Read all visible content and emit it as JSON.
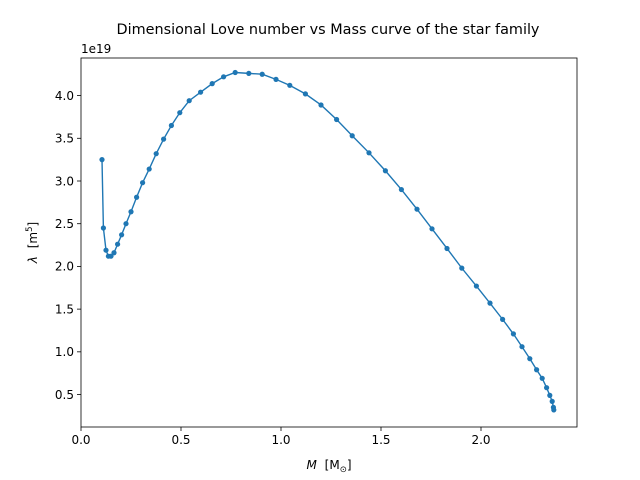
{
  "chart_data": {
    "type": "line",
    "title": "Dimensional Love number vs Mass curve of the star family",
    "xlabel": "M",
    "xlabel_unit": "[M",
    "xlabel_unit_sub": "⊙",
    "xlabel_unit_close": "]",
    "ylabel": "λ",
    "ylabel_unit": "[m",
    "ylabel_unit_sup": "5",
    "ylabel_unit_close": "]",
    "y_offset_label": "1e19",
    "xlim": [
      0.0,
      2.48
    ],
    "ylim": [
      0.12,
      4.44
    ],
    "x_ticks": [
      0.0,
      0.5,
      1.0,
      1.5,
      2.0
    ],
    "x_tick_labels": [
      "0.0",
      "0.5",
      "1.0",
      "1.5",
      "2.0"
    ],
    "y_ticks": [
      0.5,
      1.0,
      1.5,
      2.0,
      2.5,
      3.0,
      3.5,
      4.0
    ],
    "y_tick_labels": [
      "0.5",
      "1.0",
      "1.5",
      "2.0",
      "2.5",
      "3.0",
      "3.5",
      "4.0"
    ],
    "grid": false,
    "line_color": "#1f77b4",
    "marker": "circle",
    "x": [
      0.105,
      0.112,
      0.125,
      0.137,
      0.15,
      0.165,
      0.183,
      0.203,
      0.225,
      0.25,
      0.278,
      0.308,
      0.341,
      0.376,
      0.413,
      0.452,
      0.494,
      0.541,
      0.598,
      0.656,
      0.713,
      0.771,
      0.839,
      0.906,
      0.975,
      1.044,
      1.122,
      1.2,
      1.278,
      1.356,
      1.44,
      1.522,
      1.602,
      1.68,
      1.755,
      1.83,
      1.904,
      1.977,
      2.045,
      2.108,
      2.162,
      2.205,
      2.244,
      2.278,
      2.306,
      2.328,
      2.344,
      2.356,
      2.362,
      2.364
    ],
    "y": [
      3.25,
      2.45,
      2.19,
      2.12,
      2.12,
      2.16,
      2.26,
      2.37,
      2.5,
      2.64,
      2.81,
      2.98,
      3.14,
      3.32,
      3.49,
      3.65,
      3.8,
      3.94,
      4.04,
      4.14,
      4.22,
      4.27,
      4.26,
      4.25,
      4.19,
      4.12,
      4.02,
      3.89,
      3.72,
      3.53,
      3.33,
      3.12,
      2.9,
      2.67,
      2.44,
      2.21,
      1.98,
      1.77,
      1.57,
      1.38,
      1.21,
      1.06,
      0.92,
      0.79,
      0.69,
      0.58,
      0.49,
      0.42,
      0.35,
      0.32
    ]
  }
}
